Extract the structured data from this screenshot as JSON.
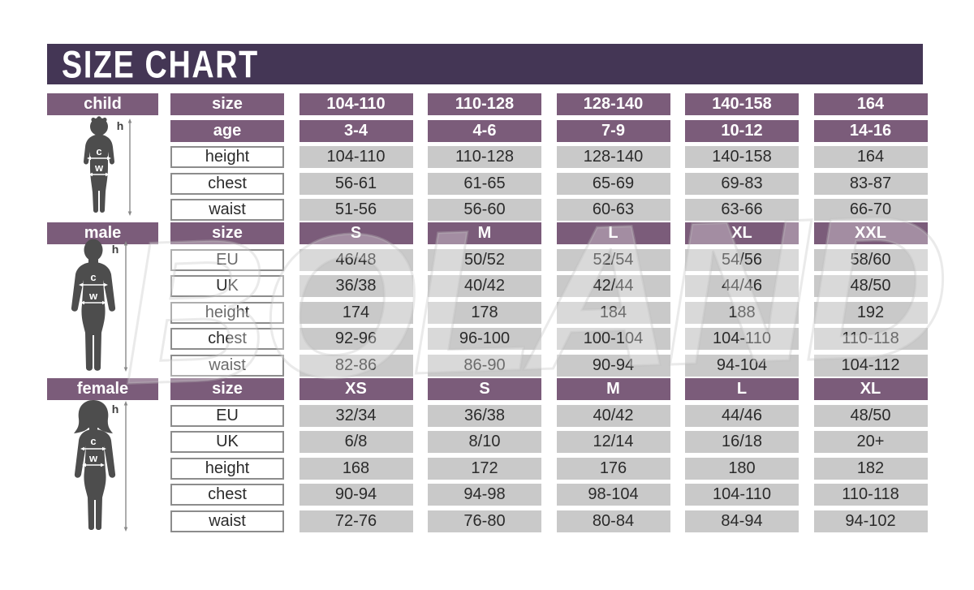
{
  "page": {
    "title": "SIZE CHART"
  },
  "watermark": "BOLAND",
  "figure_labels": {
    "h": "h",
    "c": "c",
    "w": "w"
  },
  "colors": {
    "title_bar": "#443655",
    "header_plum": "#7B5C7A",
    "cell_gray": "#C9C9C9",
    "cell_border": "#8C8C8C",
    "text_dark": "#2B2B2B",
    "silhouette": "#4D4D4D",
    "background": "#FFFFFF"
  },
  "sections": [
    {
      "name": "child",
      "rows": [
        {
          "type": "header",
          "label": "size",
          "values": [
            "104-110",
            "110-128",
            "128-140",
            "140-158",
            "164"
          ]
        },
        {
          "type": "header",
          "label": "age",
          "values": [
            "3-4",
            "4-6",
            "7-9",
            "10-12",
            "14-16"
          ]
        },
        {
          "type": "data",
          "label": "height",
          "values": [
            "104-110",
            "110-128",
            "128-140",
            "140-158",
            "164"
          ]
        },
        {
          "type": "data",
          "label": "chest",
          "values": [
            "56-61",
            "61-65",
            "65-69",
            "69-83",
            "83-87"
          ]
        },
        {
          "type": "data",
          "label": "waist",
          "values": [
            "51-56",
            "56-60",
            "60-63",
            "63-66",
            "66-70"
          ]
        }
      ]
    },
    {
      "name": "male",
      "rows": [
        {
          "type": "header",
          "label": "size",
          "values": [
            "S",
            "M",
            "L",
            "XL",
            "XXL"
          ]
        },
        {
          "type": "data",
          "label": "EU",
          "values": [
            "46/48",
            "50/52",
            "52/54",
            "54/56",
            "58/60"
          ]
        },
        {
          "type": "data",
          "label": "UK",
          "values": [
            "36/38",
            "40/42",
            "42/44",
            "44/46",
            "48/50"
          ]
        },
        {
          "type": "data",
          "label": "height",
          "values": [
            "174",
            "178",
            "184",
            "188",
            "192"
          ]
        },
        {
          "type": "data",
          "label": "chest",
          "values": [
            "92-96",
            "96-100",
            "100-104",
            "104-110",
            "110-118"
          ]
        },
        {
          "type": "data",
          "label": "waist",
          "values": [
            "82-86",
            "86-90",
            "90-94",
            "94-104",
            "104-112"
          ]
        }
      ]
    },
    {
      "name": "female",
      "rows": [
        {
          "type": "header",
          "label": "size",
          "values": [
            "XS",
            "S",
            "M",
            "L",
            "XL"
          ]
        },
        {
          "type": "data",
          "label": "EU",
          "values": [
            "32/34",
            "36/38",
            "40/42",
            "44/46",
            "48/50"
          ]
        },
        {
          "type": "data",
          "label": "UK",
          "values": [
            "6/8",
            "8/10",
            "12/14",
            "16/18",
            "20+"
          ]
        },
        {
          "type": "data",
          "label": "height",
          "values": [
            "168",
            "172",
            "176",
            "180",
            "182"
          ]
        },
        {
          "type": "data",
          "label": "chest",
          "values": [
            "90-94",
            "94-98",
            "98-104",
            "104-110",
            "110-118"
          ]
        },
        {
          "type": "data",
          "label": "waist",
          "values": [
            "72-76",
            "76-80",
            "80-84",
            "84-94",
            "94-102"
          ]
        }
      ]
    }
  ],
  "chart_data": [
    {
      "type": "table",
      "title": "child",
      "columns": [
        "size",
        "104-110",
        "110-128",
        "128-140",
        "140-158",
        "164"
      ],
      "rows": [
        [
          "age",
          "3-4",
          "4-6",
          "7-9",
          "10-12",
          "14-16"
        ],
        [
          "height",
          "104-110",
          "110-128",
          "128-140",
          "140-158",
          "164"
        ],
        [
          "chest",
          "56-61",
          "61-65",
          "65-69",
          "69-83",
          "83-87"
        ],
        [
          "waist",
          "51-56",
          "56-60",
          "60-63",
          "63-66",
          "66-70"
        ]
      ]
    },
    {
      "type": "table",
      "title": "male",
      "columns": [
        "size",
        "S",
        "M",
        "L",
        "XL",
        "XXL"
      ],
      "rows": [
        [
          "EU",
          "46/48",
          "50/52",
          "52/54",
          "54/56",
          "58/60"
        ],
        [
          "UK",
          "36/38",
          "40/42",
          "42/44",
          "44/46",
          "48/50"
        ],
        [
          "height",
          "174",
          "178",
          "184",
          "188",
          "192"
        ],
        [
          "chest",
          "92-96",
          "96-100",
          "100-104",
          "104-110",
          "110-118"
        ],
        [
          "waist",
          "82-86",
          "86-90",
          "90-94",
          "94-104",
          "104-112"
        ]
      ]
    },
    {
      "type": "table",
      "title": "female",
      "columns": [
        "size",
        "XS",
        "S",
        "M",
        "L",
        "XL"
      ],
      "rows": [
        [
          "EU",
          "32/34",
          "36/38",
          "40/42",
          "44/46",
          "48/50"
        ],
        [
          "UK",
          "6/8",
          "8/10",
          "12/14",
          "16/18",
          "20+"
        ],
        [
          "height",
          "168",
          "172",
          "176",
          "180",
          "182"
        ],
        [
          "chest",
          "90-94",
          "94-98",
          "98-104",
          "104-110",
          "110-118"
        ],
        [
          "waist",
          "72-76",
          "76-80",
          "80-84",
          "84-94",
          "94-102"
        ]
      ]
    }
  ]
}
